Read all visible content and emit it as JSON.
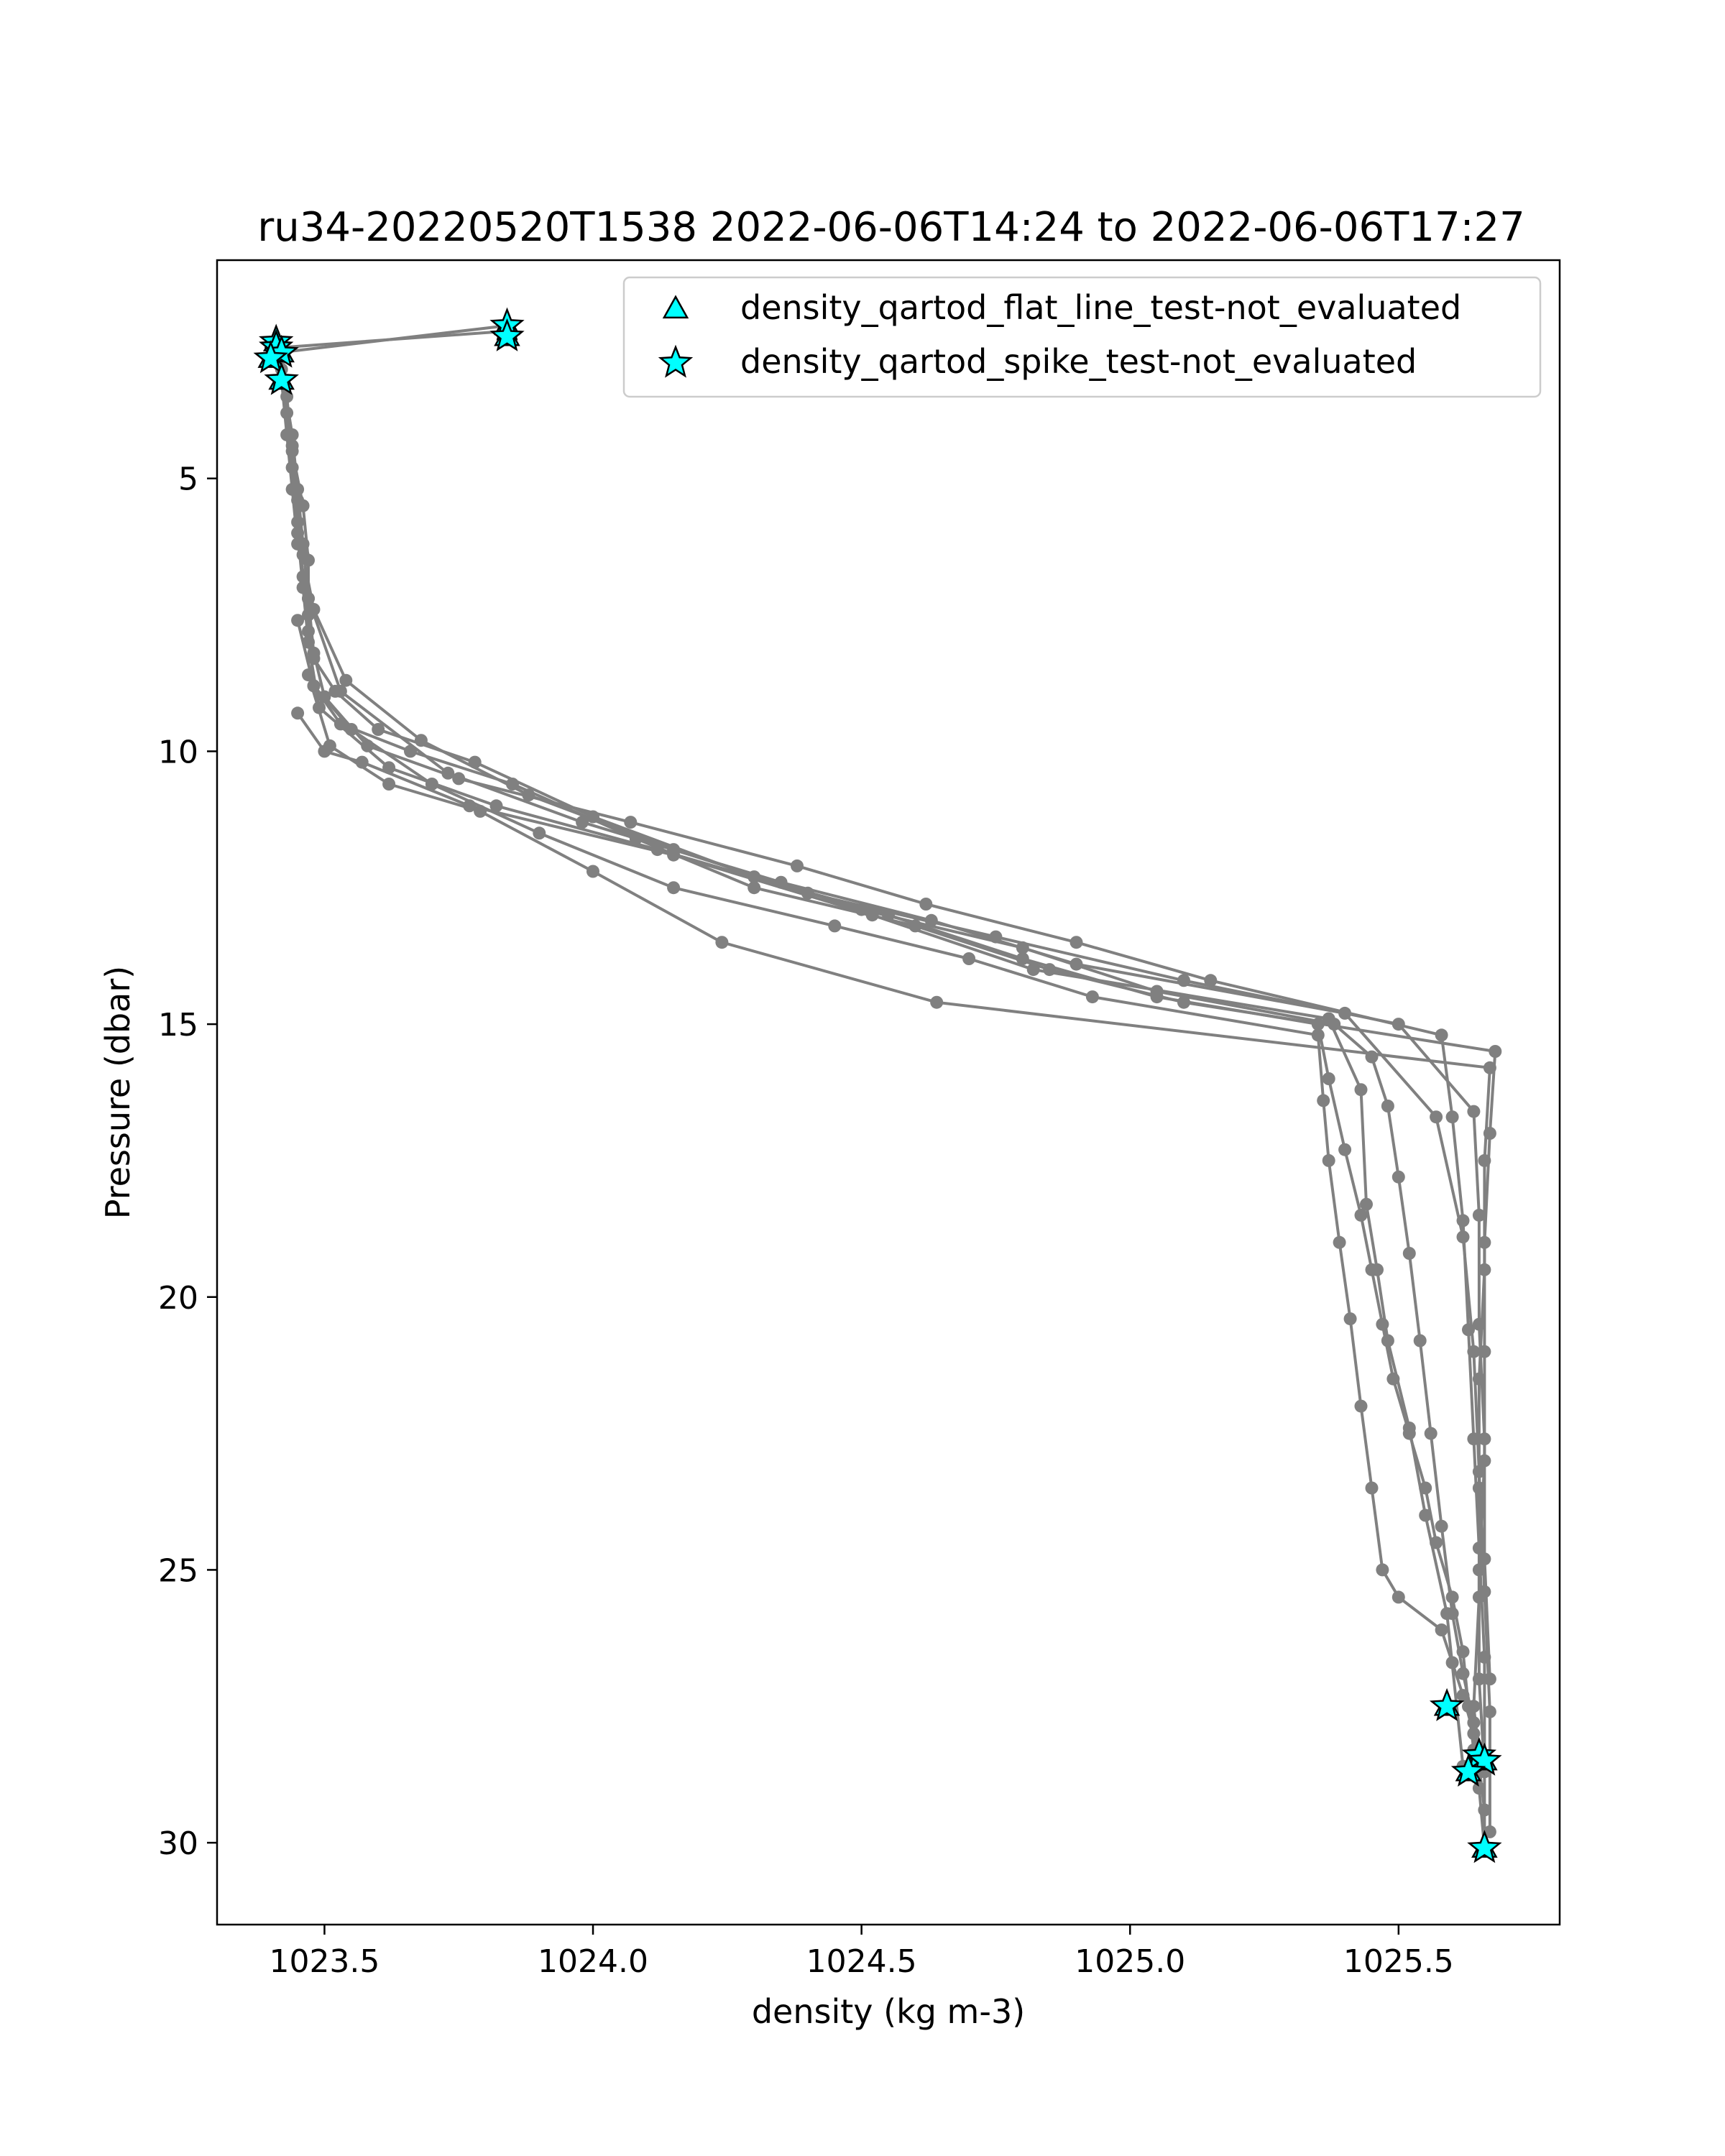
{
  "chart_data": {
    "type": "scatter",
    "title": "ru34-20220520T1538 2022-06-06T14:24 to 2022-06-06T17:27",
    "xlabel": "density (kg m-3)",
    "ylabel": "Pressure (dbar)",
    "xlim": [
      1023.3,
      1025.8
    ],
    "ylim": [
      31.5,
      1.0
    ],
    "y_inverted": true,
    "grid": false,
    "x_ticks": [
      1023.5,
      1024.0,
      1024.5,
      1025.0,
      1025.5
    ],
    "x_tick_labels": [
      "1023.5",
      "1024.0",
      "1024.5",
      "1025.0",
      "1025.5"
    ],
    "y_ticks": [
      5,
      10,
      15,
      20,
      25,
      30
    ],
    "y_tick_labels": [
      "5",
      "10",
      "15",
      "20",
      "25",
      "30"
    ],
    "line_color": "#808080",
    "flag_color": "#00ffff",
    "legend_placement": "top-right",
    "legend": [
      {
        "label": "density_qartod_flat_line_test-not_evaluated",
        "marker": "triangle"
      },
      {
        "label": "density_qartod_spike_test-not_evaluated",
        "marker": "star"
      }
    ],
    "profiles": [
      {
        "x": [
          1023.84,
          1023.42,
          1023.43,
          1023.44,
          1023.46,
          1023.47,
          1023.47,
          1023.48,
          1023.52,
          1023.6,
          1023.78,
          1024.0,
          1024.3,
          1024.55,
          1024.8,
          1025.05,
          1025.35,
          1025.37,
          1025.4,
          1025.43,
          1025.45,
          1025.47,
          1025.49,
          1025.52,
          1025.55,
          1025.57,
          1025.6,
          1025.62,
          1025.63,
          1025.64,
          1025.65,
          1025.66
        ],
        "y": [
          2.3,
          2.6,
          3.5,
          4.5,
          5.5,
          6.5,
          7.5,
          8.3,
          8.9,
          9.6,
          10.2,
          11.2,
          12.3,
          13.0,
          13.8,
          14.5,
          15.0,
          16.0,
          17.3,
          18.5,
          19.5,
          20.5,
          21.5,
          22.5,
          23.5,
          24.5,
          25.5,
          26.5,
          27.5,
          28.3,
          29.0,
          30.1
        ]
      },
      {
        "x": [
          1023.84,
          1023.41,
          1023.43,
          1023.44,
          1023.45,
          1023.46,
          1023.47,
          1023.48,
          1023.55,
          1023.7,
          1023.9,
          1024.15,
          1024.45,
          1024.7,
          1024.93,
          1025.35,
          1025.36,
          1025.37,
          1025.39,
          1025.41,
          1025.43,
          1025.45,
          1025.47,
          1025.5,
          1025.58,
          1025.6,
          1025.62,
          1025.64,
          1025.65,
          1025.66
        ],
        "y": [
          2.2,
          2.7,
          3.8,
          4.8,
          5.8,
          6.8,
          7.8,
          8.8,
          9.6,
          10.6,
          11.5,
          12.5,
          13.2,
          13.8,
          14.5,
          15.2,
          16.4,
          17.5,
          19.0,
          20.4,
          22.0,
          23.5,
          25.0,
          25.5,
          26.1,
          26.7,
          27.3,
          28.0,
          28.6,
          29.4
        ]
      },
      {
        "x": [
          1023.42,
          1023.44,
          1023.45,
          1023.46,
          1023.47,
          1023.48,
          1023.5,
          1023.58,
          1023.75,
          1024.07,
          1024.38,
          1024.62,
          1024.9,
          1025.15,
          1025.58,
          1025.6,
          1025.62,
          1025.63,
          1025.64,
          1025.65,
          1025.66,
          1025.66
        ],
        "y": [
          3.0,
          4.2,
          5.2,
          6.2,
          7.2,
          8.2,
          9.0,
          9.9,
          10.5,
          11.3,
          12.1,
          12.8,
          13.5,
          14.2,
          15.2,
          16.7,
          18.6,
          20.6,
          22.6,
          24.6,
          26.6,
          28.5
        ]
      },
      {
        "x": [
          1023.44,
          1023.45,
          1023.46,
          1023.48,
          1023.54,
          1023.68,
          1023.88,
          1024.15,
          1024.5,
          1024.8,
          1025.05,
          1025.38,
          1025.45,
          1025.48,
          1025.5,
          1025.52,
          1025.54,
          1025.56,
          1025.58,
          1025.6,
          1025.62,
          1025.64,
          1025.66
        ],
        "y": [
          4.4,
          5.4,
          6.4,
          7.4,
          8.7,
          9.8,
          10.8,
          11.8,
          12.9,
          13.6,
          14.4,
          15.0,
          15.6,
          16.5,
          17.8,
          19.2,
          20.8,
          22.5,
          24.2,
          25.8,
          26.9,
          27.8,
          28.6
        ]
      },
      {
        "x": [
          1023.41,
          1023.42,
          1023.43,
          1023.44,
          1023.45,
          1023.47,
          1023.53,
          1023.73,
          1023.98,
          1024.35,
          1024.63,
          1024.9,
          1025.4,
          1025.57,
          1025.62,
          1025.64,
          1025.65,
          1025.66,
          1025.67,
          1025.67
        ],
        "y": [
          2.5,
          3.2,
          4.2,
          5.2,
          6.2,
          7.2,
          8.9,
          10.4,
          11.3,
          12.4,
          13.1,
          13.9,
          14.8,
          16.7,
          18.9,
          21.0,
          23.2,
          25.4,
          27.6,
          29.8
        ]
      },
      {
        "x": [
          1023.45,
          1023.46,
          1023.47,
          1023.49,
          1023.62,
          1023.82,
          1024.12,
          1024.4,
          1024.75,
          1025.1,
          1025.5,
          1025.64,
          1025.65,
          1025.65,
          1025.66,
          1025.66,
          1025.67
        ],
        "y": [
          6.0,
          7.0,
          8.0,
          9.2,
          10.3,
          11.0,
          11.8,
          12.6,
          13.4,
          14.2,
          15.0,
          16.6,
          18.5,
          20.5,
          22.6,
          24.8,
          27.0
        ]
      },
      {
        "x": [
          1023.45,
          1023.48,
          1023.53,
          1023.66,
          1023.85,
          1024.08,
          1024.3,
          1024.6,
          1024.85,
          1025.1,
          1025.68,
          1025.67,
          1025.66,
          1025.66,
          1025.66,
          1025.65,
          1025.65,
          1025.66,
          1025.66
        ],
        "y": [
          7.6,
          8.8,
          9.5,
          10.0,
          10.6,
          11.6,
          12.5,
          13.2,
          14.0,
          14.6,
          15.5,
          17.0,
          19.0,
          21.0,
          23.0,
          25.0,
          27.0,
          28.7,
          30.1
        ]
      },
      {
        "x": [
          1023.47,
          1023.51,
          1023.62,
          1023.79,
          1024.0,
          1024.24,
          1024.64,
          1025.67,
          1025.66,
          1025.66,
          1025.65,
          1025.65,
          1025.65,
          1025.64,
          1025.65
        ],
        "y": [
          8.6,
          9.9,
          10.6,
          11.1,
          12.2,
          13.5,
          14.6,
          15.8,
          17.5,
          19.5,
          21.5,
          23.5,
          25.5,
          27.5,
          28.4
        ]
      },
      {
        "x": [
          1023.45,
          1023.5,
          1023.57,
          1023.77,
          1024.15,
          1024.52,
          1024.82,
          1025.37,
          1025.43,
          1025.44,
          1025.46,
          1025.48,
          1025.52,
          1025.55,
          1025.59,
          1025.62
        ],
        "y": [
          9.3,
          10.0,
          10.2,
          11.0,
          11.9,
          13.0,
          14.0,
          14.9,
          16.2,
          18.3,
          19.5,
          20.8,
          22.4,
          24.0,
          25.8,
          28.6
        ]
      }
    ],
    "flagged_points": {
      "x": [
        1023.84,
        1023.84,
        1023.41,
        1023.41,
        1023.42,
        1023.4,
        1023.42,
        1025.59,
        1025.65,
        1025.66,
        1025.63,
        1025.66
      ],
      "y": [
        2.2,
        2.4,
        2.5,
        2.6,
        2.7,
        2.8,
        3.2,
        27.5,
        28.4,
        28.5,
        28.7,
        30.1
      ]
    }
  }
}
